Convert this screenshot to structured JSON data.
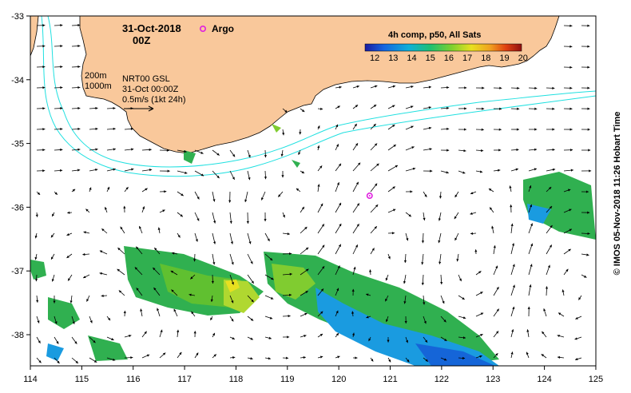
{
  "title": {
    "date": "31-Oct-2018",
    "time": "00Z"
  },
  "legend": {
    "argo_label": "Argo",
    "argo_color": "#e020e0"
  },
  "isobaths": {
    "shallow": "200m",
    "deep": "1000m",
    "color": "#20e0e0"
  },
  "product": {
    "name": "NRT00 GSL",
    "timestamp": "31-Oct 00:00Z",
    "vector_scale": "0.5m/s (1kt 24h)"
  },
  "colorbar": {
    "title": "4h comp, p50, All Sats",
    "ticks": [
      "12",
      "13",
      "14",
      "15",
      "16",
      "17",
      "18",
      "19",
      "20"
    ]
  },
  "credit": "© IMOS 05-Nov-2018 11:26 Hobart Time",
  "axes": {
    "lon_ticks": [
      "114",
      "115",
      "116",
      "117",
      "118",
      "119",
      "120",
      "121",
      "122",
      "123",
      "124",
      "125"
    ],
    "lat_ticks": [
      "-33",
      "-34",
      "-35",
      "-36",
      "-37",
      "-38"
    ]
  },
  "argo_float": {
    "lon": 120.6,
    "lat": -35.82
  },
  "colors": {
    "land": "#f9c89b",
    "ocean": "#ffffff",
    "frame": "#000000"
  }
}
